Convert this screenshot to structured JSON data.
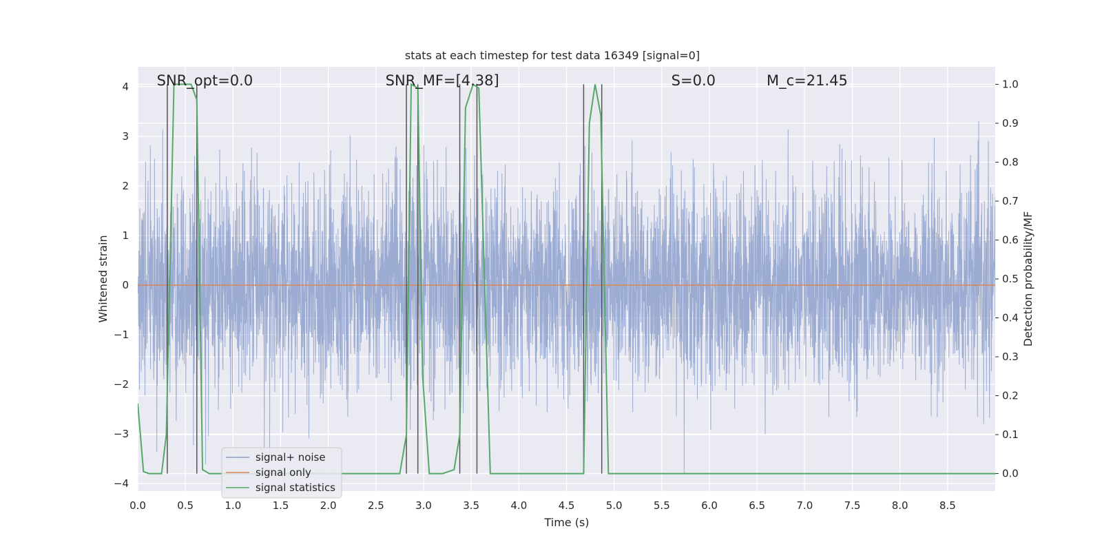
{
  "chart_data": {
    "type": "line",
    "title": "stats at each timestep for test data 16349 [signal=0]",
    "xlabel": "Time (s)",
    "ylabel_left": "Whitened strain",
    "ylabel_right": "Detection probability/MF",
    "xlim": [
      0,
      9.0
    ],
    "ylim_left": [
      -4.15,
      4.4
    ],
    "ylim_right": [
      -0.045,
      1.045
    ],
    "x_ticks": [
      "0.0",
      "0.5",
      "1.0",
      "1.5",
      "2.0",
      "2.5",
      "3.0",
      "3.5",
      "4.0",
      "4.5",
      "5.0",
      "5.5",
      "6.0",
      "6.5",
      "7.0",
      "7.5",
      "8.0",
      "8.5"
    ],
    "y_ticks_left": [
      "4",
      "3",
      "2",
      "1",
      "0",
      "−1",
      "−2",
      "−3",
      "−4"
    ],
    "y_ticks_right": [
      "1.0",
      "0.9",
      "0.8",
      "0.7",
      "0.6",
      "0.5",
      "0.4",
      "0.3",
      "0.2",
      "0.1",
      "0.0"
    ],
    "grid": true,
    "legend_position": "lower-left",
    "annotations": [
      {
        "label": "SNR_opt=0.0",
        "x": 0.2
      },
      {
        "label": "SNR_MF=[4.38]",
        "x": 2.6
      },
      {
        "label": "S=0.0",
        "x": 5.6
      },
      {
        "label": "M_c=21.45",
        "x": 6.6
      }
    ],
    "colors": {
      "background": "#eaeaf2",
      "noise": "#8da0cb",
      "signal": "#dd8452",
      "stats": "#55a868",
      "vline": "#555555"
    },
    "series": [
      {
        "name": "signal+ noise",
        "axis": "left",
        "description": "whitened strain noise, amplitude roughly within ±3.3"
      },
      {
        "name": "signal only",
        "axis": "left",
        "x": [
          0,
          9.0
        ],
        "y": [
          0,
          0
        ]
      },
      {
        "name": "signal statistics",
        "axis": "right",
        "x": [
          0.0,
          0.06,
          0.12,
          0.18,
          0.25,
          0.3,
          0.38,
          0.44,
          0.56,
          0.62,
          0.68,
          0.75,
          2.5,
          2.75,
          2.82,
          2.87,
          2.94,
          2.99,
          3.06,
          3.2,
          3.32,
          3.38,
          3.44,
          3.52,
          3.58,
          3.7,
          4.68,
          4.74,
          4.8,
          4.86,
          4.94,
          5.0,
          9.0
        ],
        "y": [
          0.18,
          0.005,
          0.0,
          0.0,
          0.0,
          0.1,
          1.0,
          1.0,
          1.0,
          0.96,
          0.01,
          0.0,
          0.0,
          0.0,
          0.1,
          1.0,
          0.99,
          0.25,
          0.0,
          0.0,
          0.01,
          0.1,
          0.94,
          1.0,
          0.99,
          0.0,
          0.0,
          0.9,
          1.0,
          0.92,
          0.0,
          0.0,
          0.0
        ]
      }
    ],
    "vertical_lines_x": [
      0.31,
      0.62,
      2.82,
      2.94,
      3.38,
      3.56,
      4.68,
      4.87
    ]
  }
}
